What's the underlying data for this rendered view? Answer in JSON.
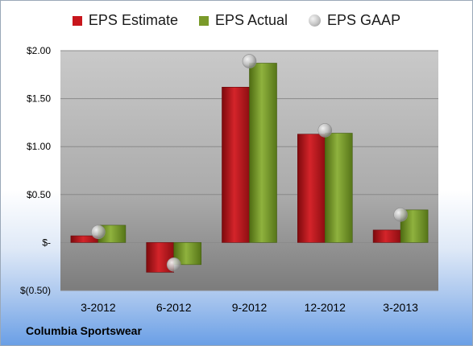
{
  "chart_data": {
    "type": "bar",
    "categories": [
      "3-2012",
      "6-2012",
      "9-2012",
      "12-2012",
      "3-2013"
    ],
    "series": [
      {
        "name": "EPS Estimate",
        "values": [
          0.07,
          -0.31,
          1.62,
          1.13,
          0.13
        ],
        "color": "#c8161c"
      },
      {
        "name": "EPS Actual",
        "values": [
          0.18,
          -0.23,
          1.87,
          1.14,
          0.34
        ],
        "color": "#7a9a2a"
      }
    ],
    "gaap": {
      "name": "EPS GAAP",
      "values": [
        0.11,
        -0.23,
        1.89,
        1.17,
        0.29
      ]
    },
    "y_ticks": [
      2.0,
      1.5,
      1.0,
      0.5,
      0,
      -0.5
    ],
    "y_tick_labels": [
      "$2.00",
      "$1.50",
      "$1.00",
      "$0.50",
      "$-",
      "$(0.50)"
    ],
    "ylim": [
      -0.5,
      2.0
    ],
    "grid": true,
    "legend_position": "top"
  },
  "footer": {
    "company": "Columbia Sportswear"
  }
}
